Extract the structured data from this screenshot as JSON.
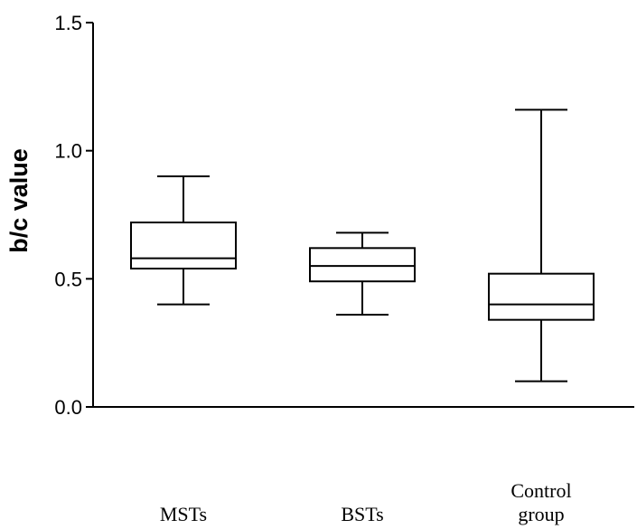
{
  "chart_data": {
    "type": "box",
    "title": "",
    "xlabel": "",
    "ylabel": "b/c value",
    "ylim": [
      0.0,
      1.5
    ],
    "yticks": [
      {
        "value": 0.0,
        "label": "0.0"
      },
      {
        "value": 0.5,
        "label": "0.5"
      },
      {
        "value": 1.0,
        "label": "1.0"
      },
      {
        "value": 1.5,
        "label": "1.5"
      }
    ],
    "grid": false,
    "legend": "none",
    "categories": [
      {
        "lines": [
          "MSTs"
        ]
      },
      {
        "lines": [
          "BSTs"
        ]
      },
      {
        "lines": [
          "Control",
          "group"
        ]
      }
    ],
    "boxes": [
      {
        "min": 0.4,
        "q1": 0.54,
        "median": 0.58,
        "q3": 0.72,
        "max": 0.9
      },
      {
        "min": 0.36,
        "q1": 0.49,
        "median": 0.55,
        "q3": 0.62,
        "max": 0.68
      },
      {
        "min": 0.1,
        "q1": 0.34,
        "median": 0.4,
        "q3": 0.52,
        "max": 1.16
      }
    ]
  }
}
